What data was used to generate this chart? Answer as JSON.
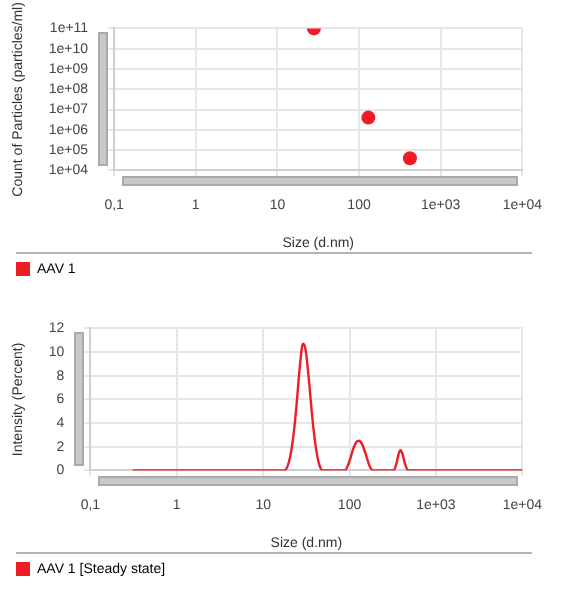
{
  "chart_data": [
    {
      "type": "scatter",
      "xlabel": "Size (d.nm)",
      "ylabel": "Count of Particles (particles/ml)",
      "log": "xy",
      "grid": true,
      "legend": "bottom",
      "marker": "circle",
      "xlim": [
        0.1,
        10000
      ],
      "xticks": [
        {
          "value": 0.1,
          "label": "0,1"
        },
        1,
        10,
        100,
        {
          "value": 1000,
          "label": "1e+03"
        },
        {
          "value": 10000,
          "label": "1e+04"
        }
      ],
      "ylim": [
        10000,
        100000000000
      ],
      "yticks": [
        {
          "value": 10000,
          "label": "1e+04"
        },
        {
          "value": 100000,
          "label": "1e+05"
        },
        {
          "value": 1000000,
          "label": "1e+06"
        },
        {
          "value": 10000000,
          "label": "1e+07"
        },
        {
          "value": 100000000,
          "label": "1e+08"
        },
        {
          "value": 1000000000,
          "label": "1e+09"
        },
        {
          "value": 10000000000,
          "label": "1e+10"
        },
        {
          "value": 100000000000,
          "label": "1e+11"
        }
      ],
      "series": [
        {
          "name": "AAV 1",
          "color": "#ee1c25",
          "x": [
            28,
            130,
            420
          ],
          "values": [
            100000000000,
            4000000,
            40000
          ]
        }
      ]
    },
    {
      "type": "line",
      "xlabel": "Size (d.nm)",
      "ylabel": "Intensity (Percent)",
      "log": "x",
      "grid": true,
      "legend": "bottom",
      "marker": "none",
      "line_style": "solid",
      "xlim": [
        0.1,
        10000
      ],
      "xticks": [
        {
          "value": 0.1,
          "label": "0,1"
        },
        1,
        10,
        100,
        {
          "value": 1000,
          "label": "1e+03"
        },
        {
          "value": 10000,
          "label": "1e+04"
        }
      ],
      "ylim": [
        0,
        12
      ],
      "yticks": [
        0,
        2,
        4,
        6,
        8,
        10,
        12
      ],
      "series": [
        {
          "name": "AAV 1 [Steady state]",
          "color": "#ee1c25",
          "x": [
            0.31,
            17.6,
            20,
            22,
            24,
            26,
            28,
            29,
            31,
            34,
            37,
            41,
            45,
            49,
            88,
            100,
            110,
            120,
            128,
            140,
            155,
            170,
            186,
            324,
            350,
            370,
            390,
            410,
            440,
            480,
            10000
          ],
          "values": [
            0,
            0,
            0.8,
            2.5,
            5,
            8,
            10.3,
            10.7,
            10.2,
            7.5,
            4.5,
            1.8,
            0.4,
            0,
            0,
            0.8,
            1.8,
            2.4,
            2.5,
            2.2,
            1.3,
            0.4,
            0,
            0,
            0.6,
            1.4,
            1.7,
            1.4,
            0.5,
            0,
            0
          ]
        }
      ]
    }
  ]
}
